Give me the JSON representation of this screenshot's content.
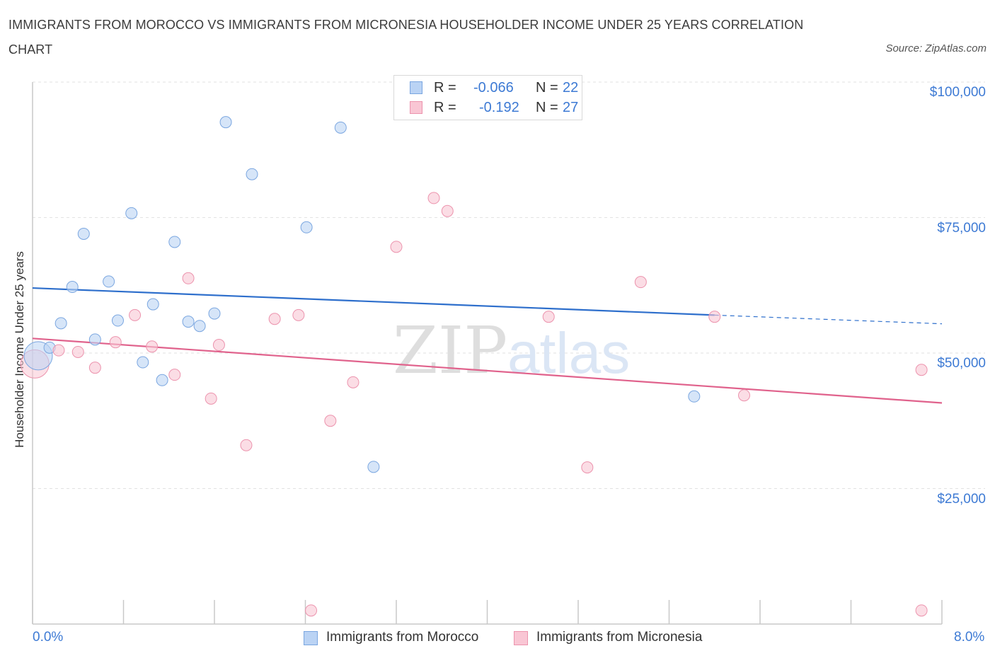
{
  "title": "IMMIGRANTS FROM MOROCCO VS IMMIGRANTS FROM MICRONESIA HOUSEHOLDER INCOME UNDER 25 YEARS CORRELATION CHART",
  "source": "Source: ZipAtlas.com",
  "watermark": {
    "zip": "ZIP",
    "atlas": "atlas"
  },
  "legend": {
    "rows": [
      {
        "r_label": "R =",
        "r_value": "-0.066",
        "n_label": "N =",
        "n_value": "22"
      },
      {
        "r_label": "R =",
        "r_value": "-0.192",
        "n_label": "N =",
        "n_value": "27"
      }
    ]
  },
  "colors": {
    "morocco_fill": "#bad3f4",
    "morocco_stroke": "#7aa6e0",
    "morocco_line": "#2e6fcc",
    "micronesia_fill": "#f9c6d4",
    "micronesia_stroke": "#ec93ad",
    "micronesia_line": "#e0628c",
    "axis_label": "#3d7ad4",
    "grid": "#e2e2e2"
  },
  "chart_data": {
    "type": "scatter",
    "title": "IMMIGRANTS FROM MOROCCO VS IMMIGRANTS FROM MICRONESIA HOUSEHOLDER INCOME UNDER 25 YEARS CORRELATION CHART",
    "xlabel": "",
    "ylabel": "Householder Income Under 25 years",
    "xlim": [
      0,
      8
    ],
    "ylim": [
      0,
      100000
    ],
    "x_tick_labels": [
      "0.0%",
      "8.0%"
    ],
    "y_ticks": [
      25000,
      50000,
      75000,
      100000
    ],
    "y_tick_labels": [
      "$25,000",
      "$50,000",
      "$75,000",
      "$100,000"
    ],
    "grid": true,
    "legend_position": "top-center",
    "series": [
      {
        "name": "Immigrants from Morocco",
        "r": -0.066,
        "n": 22,
        "trend": {
          "x": [
            0,
            6.0
          ],
          "y": [
            62000,
            57000
          ],
          "extended_to": [
            8.0,
            55400
          ]
        },
        "points": [
          {
            "x": 0.05,
            "y": 49500,
            "big": true
          },
          {
            "x": 0.15,
            "y": 51000
          },
          {
            "x": 0.25,
            "y": 55500
          },
          {
            "x": 0.35,
            "y": 62200
          },
          {
            "x": 0.45,
            "y": 72000
          },
          {
            "x": 0.55,
            "y": 52500
          },
          {
            "x": 0.67,
            "y": 63200
          },
          {
            "x": 0.75,
            "y": 56000
          },
          {
            "x": 0.87,
            "y": 75800
          },
          {
            "x": 0.97,
            "y": 48300
          },
          {
            "x": 1.06,
            "y": 59000
          },
          {
            "x": 1.14,
            "y": 45000
          },
          {
            "x": 1.25,
            "y": 70500
          },
          {
            "x": 1.37,
            "y": 55800
          },
          {
            "x": 1.47,
            "y": 55000
          },
          {
            "x": 1.6,
            "y": 57300
          },
          {
            "x": 1.7,
            "y": 92600
          },
          {
            "x": 1.93,
            "y": 83000
          },
          {
            "x": 2.41,
            "y": 73200
          },
          {
            "x": 2.71,
            "y": 91600
          },
          {
            "x": 3.0,
            "y": 29000
          },
          {
            "x": 5.82,
            "y": 42000
          }
        ]
      },
      {
        "name": "Immigrants from Micronesia",
        "r": -0.192,
        "n": 27,
        "trend": {
          "x": [
            0,
            8.0
          ],
          "y": [
            52700,
            40800
          ]
        },
        "points": [
          {
            "x": 0.02,
            "y": 48000,
            "big": true
          },
          {
            "x": 0.23,
            "y": 50500
          },
          {
            "x": 0.4,
            "y": 50200
          },
          {
            "x": 0.55,
            "y": 47300
          },
          {
            "x": 0.73,
            "y": 52000
          },
          {
            "x": 0.9,
            "y": 57000
          },
          {
            "x": 1.05,
            "y": 51200
          },
          {
            "x": 1.25,
            "y": 46000
          },
          {
            "x": 1.37,
            "y": 63800
          },
          {
            "x": 1.57,
            "y": 41600
          },
          {
            "x": 1.64,
            "y": 51500
          },
          {
            "x": 1.88,
            "y": 33000
          },
          {
            "x": 2.13,
            "y": 56300
          },
          {
            "x": 2.34,
            "y": 57000
          },
          {
            "x": 2.45,
            "y": 2500
          },
          {
            "x": 2.62,
            "y": 37500
          },
          {
            "x": 2.82,
            "y": 44600
          },
          {
            "x": 3.2,
            "y": 69600
          },
          {
            "x": 3.53,
            "y": 78600
          },
          {
            "x": 3.65,
            "y": 76200
          },
          {
            "x": 4.54,
            "y": 56700
          },
          {
            "x": 4.88,
            "y": 28900
          },
          {
            "x": 5.35,
            "y": 63100
          },
          {
            "x": 6.0,
            "y": 56700
          },
          {
            "x": 6.26,
            "y": 42200
          },
          {
            "x": 7.82,
            "y": 46900
          },
          {
            "x": 7.82,
            "y": 2500
          }
        ]
      }
    ]
  }
}
